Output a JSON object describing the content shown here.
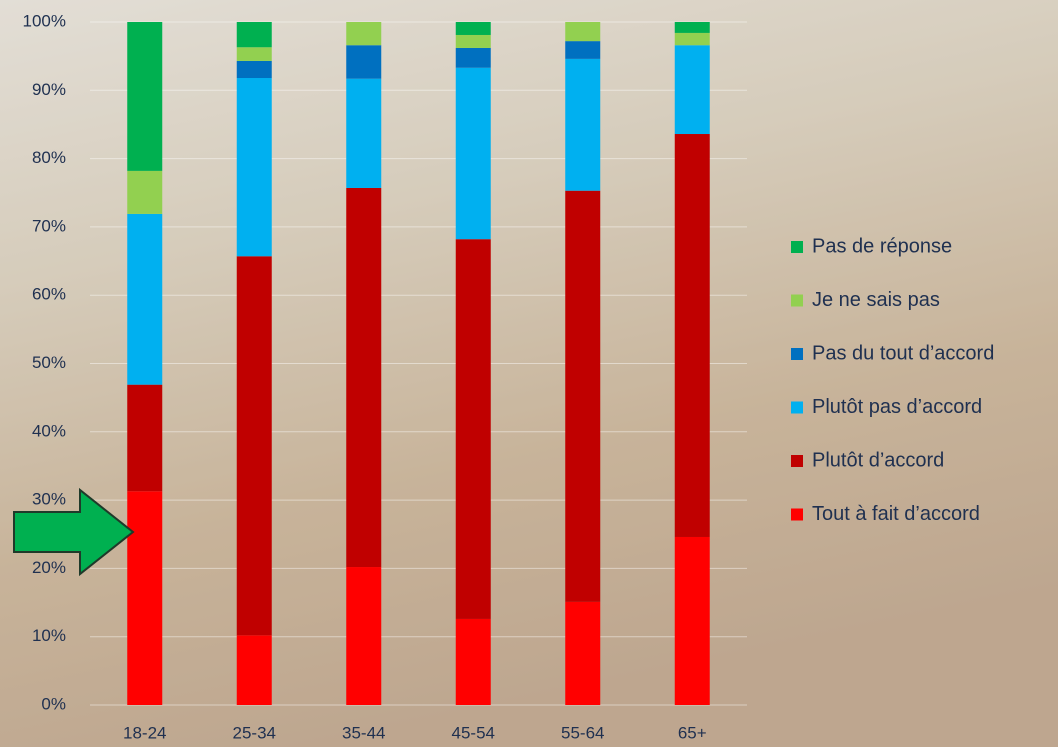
{
  "chart_data": {
    "type": "stacked_bar",
    "categories": [
      "18-24",
      "25-34",
      "35-44",
      "45-54",
      "55-64",
      "65+"
    ],
    "series": [
      {
        "name": "Tout à fait d’accord",
        "color": "#ff0000",
        "values": [
          31.3,
          10.2,
          20.2,
          12.6,
          15.1,
          24.6
        ]
      },
      {
        "name": "Plutôt d’accord",
        "color": "#c00000",
        "values": [
          15.6,
          55.5,
          55.5,
          55.6,
          60.2,
          59.0
        ]
      },
      {
        "name": "Plutôt pas d’accord",
        "color": "#00b0f0",
        "values": [
          25.0,
          26.1,
          16.0,
          25.1,
          19.3,
          13.0
        ]
      },
      {
        "name": "Pas du tout d’accord",
        "color": "#0070c0",
        "values": [
          0,
          2.5,
          4.9,
          2.9,
          2.6,
          0
        ]
      },
      {
        "name": "Je ne sais pas",
        "color": "#92d050",
        "values": [
          6.3,
          2.0,
          3.4,
          1.9,
          2.8,
          1.8
        ]
      },
      {
        "name": "Pas de réponse",
        "color": "#00b050",
        "values": [
          21.8,
          3.7,
          0,
          1.9,
          0,
          1.6
        ]
      }
    ],
    "ylim": [
      0,
      100
    ],
    "yticks": [
      {
        "value": 0,
        "label": "0%"
      },
      {
        "value": 10,
        "label": "10%"
      },
      {
        "value": 20,
        "label": "20%"
      },
      {
        "value": 30,
        "label": "30%"
      },
      {
        "value": 40,
        "label": "40%"
      },
      {
        "value": 50,
        "label": "50%"
      },
      {
        "value": 60,
        "label": "60%"
      },
      {
        "value": 70,
        "label": "70%"
      },
      {
        "value": 80,
        "label": "80%"
      },
      {
        "value": 90,
        "label": "90%"
      },
      {
        "value": 100,
        "label": "100%"
      }
    ],
    "grid": true,
    "legend": "right"
  }
}
